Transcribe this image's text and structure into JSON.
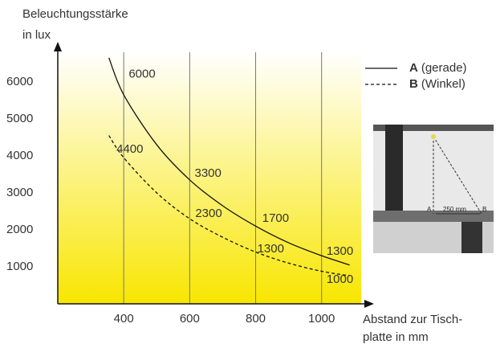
{
  "chart_data": {
    "type": "line",
    "ylabel": [
      "Beleuchtungsstärke",
      "in lux"
    ],
    "xlabel": [
      "Abstand zur Tisch-",
      "platte in mm"
    ],
    "xlim": [
      200,
      1120
    ],
    "xticks": [
      400,
      600,
      800,
      1000
    ],
    "ylim": [
      0,
      6800
    ],
    "yticks": [
      1000,
      2000,
      3000,
      4000,
      5000,
      6000
    ],
    "grid": true,
    "series": [
      {
        "name": "A",
        "description": "(gerade)",
        "color": "#111111",
        "dash": false,
        "x": [
          355,
          400,
          500,
          600,
          700,
          800,
          900,
          1000,
          1085
        ],
        "values": [
          6650,
          5650,
          4300,
          3350,
          2650,
          2100,
          1650,
          1300,
          1050
        ]
      },
      {
        "name": "B",
        "description": "(Winkel)",
        "color": "#111111",
        "dash": true,
        "x": [
          355,
          400,
          500,
          600,
          700,
          800,
          900,
          1000,
          1085
        ],
        "values": [
          4550,
          3950,
          3000,
          2300,
          1800,
          1400,
          1100,
          880,
          760
        ]
      }
    ],
    "annotations": [
      {
        "text": "6000",
        "x": 415,
        "y": 6200
      },
      {
        "text": "4400",
        "x": 378,
        "y": 4170
      },
      {
        "text": "3300",
        "x": 615,
        "y": 3520
      },
      {
        "text": "2300",
        "x": 617,
        "y": 2430
      },
      {
        "text": "1700",
        "x": 820,
        "y": 2300
      },
      {
        "text": "1300",
        "x": 805,
        "y": 1480
      },
      {
        "text": "1300",
        "x": 1015,
        "y": 1410
      },
      {
        "text": "1000",
        "x": 1015,
        "y": 650
      }
    ],
    "inset": {
      "labels": [
        "A",
        "B",
        "250 mm"
      ]
    }
  }
}
